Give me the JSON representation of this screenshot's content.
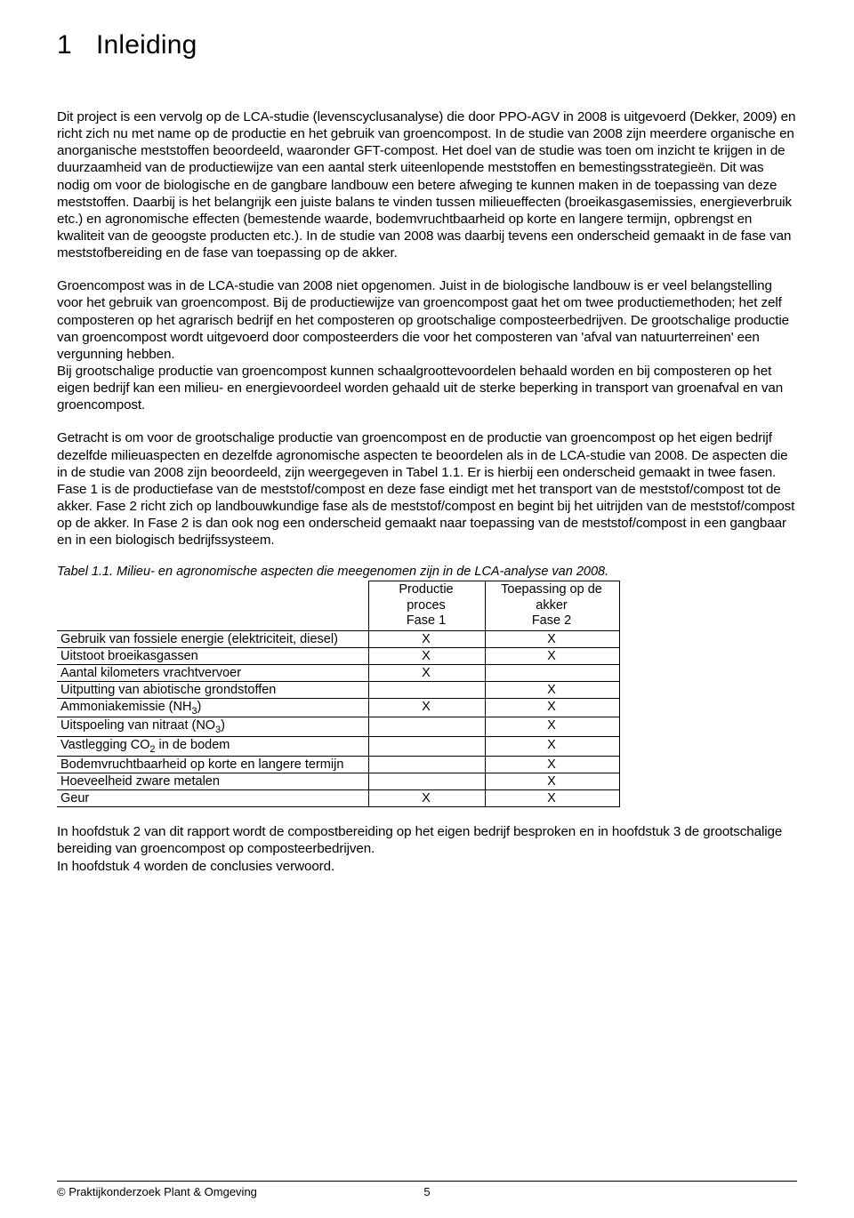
{
  "chapter": {
    "number": "1",
    "title": "Inleiding"
  },
  "paragraphs": {
    "p1": "Dit project is een vervolg op de LCA-studie (levenscyclusanalyse) die door PPO-AGV in 2008 is uitgevoerd (Dekker, 2009) en richt zich nu met name op de productie en het gebruik van groencompost. In de studie van 2008 zijn meerdere organische en anorganische meststoffen beoordeeld, waaronder GFT-compost. Het doel van de studie was toen om inzicht te krijgen in de duurzaamheid van de productiewijze van een aantal sterk uiteenlopende meststoffen en bemestingsstrategieën. Dit was nodig om voor de biologische en de gangbare landbouw een betere afweging te kunnen maken in de toepassing van deze meststoffen. Daarbij is het belangrijk een juiste balans te vinden tussen milieueffecten (broeikasgasemissies, energieverbruik etc.) en agronomische effecten (bemestende waarde, bodemvruchtbaarheid op korte en langere termijn, opbrengst en kwaliteit van de geoogste producten etc.). In de studie van 2008 was daarbij tevens een onderscheid gemaakt in de fase van meststofbereiding en de fase van toepassing op de akker.",
    "p2": "Groencompost was in de LCA-studie van 2008 niet opgenomen. Juist in de biologische landbouw is er veel belangstelling voor het gebruik van groencompost. Bij de productiewijze van groencompost gaat het om twee productiemethoden; het zelf composteren op het agrarisch bedrijf en het composteren op grootschalige composteerbedrijven. De grootschalige productie van groencompost wordt uitgevoerd door composteerders die voor het composteren van 'afval van natuurterreinen' een vergunning hebben.\nBij grootschalige productie van groencompost kunnen schaalgroottevoordelen behaald worden en bij composteren op het eigen bedrijf kan een milieu- en energievoordeel worden gehaald uit de sterke beperking in transport van groenafval en van groencompost.",
    "p3": "Getracht is om voor de grootschalige productie van groencompost en de productie van groencompost op het eigen bedrijf dezelfde milieuaspecten en dezelfde agronomische aspecten te beoordelen als in de LCA-studie van 2008. De aspecten die in de studie van 2008 zijn beoordeeld, zijn weergegeven in Tabel 1.1. Er is hierbij een onderscheid gemaakt in twee fasen. Fase 1 is de productiefase van de meststof/compost en deze fase eindigt met het transport van de meststof/compost tot de akker. Fase 2 richt zich op landbouwkundige fase als de meststof/compost en begint bij het uitrijden van de meststof/compost op de akker. In Fase 2 is dan ook nog een onderscheid gemaakt naar toepassing van de meststof/compost in een gangbaar en in een biologisch bedrijfssysteem.",
    "p4": "In hoofdstuk 2 van dit rapport wordt de compostbereiding op het eigen bedrijf besproken en in hoofdstuk 3 de grootschalige bereiding van groencompost op composteerbedrijven.\nIn hoofdstuk 4 worden de conclusies verwoord."
  },
  "table": {
    "caption": "Tabel 1.1. Milieu- en agronomische aspecten die meegenomen zijn in de LCA-analyse van 2008.",
    "header": {
      "col1": "",
      "col2_line1": "Productie",
      "col2_line2": "proces",
      "col2_line3": "Fase 1",
      "col3_line1": "Toepassing op de",
      "col3_line2": "akker",
      "col3_line3": "Fase 2"
    },
    "rows": [
      {
        "label_html": "Gebruik van fossiele energie (elektriciteit, diesel)",
        "p1": "X",
        "p2": "X"
      },
      {
        "label_html": "Uitstoot broeikasgassen",
        "p1": "X",
        "p2": "X"
      },
      {
        "label_html": "Aantal kilometers vrachtvervoer",
        "p1": "X",
        "p2": ""
      },
      {
        "label_html": "Uitputting van abiotische grondstoffen",
        "p1": "",
        "p2": "X"
      },
      {
        "label_html": "Ammoniakemissie (NH<sub>3</sub>)",
        "p1": "X",
        "p2": "X"
      },
      {
        "label_html": "Uitspoeling van nitraat (NO<sub>3</sub>)",
        "p1": "",
        "p2": "X"
      },
      {
        "label_html": "Vastlegging CO<sub>2</sub> in de bodem",
        "p1": "",
        "p2": "X"
      },
      {
        "label_html": "Bodemvruchtbaarheid op korte en langere termijn",
        "p1": "",
        "p2": "X"
      },
      {
        "label_html": "Hoeveelheid zware metalen",
        "p1": "",
        "p2": "X"
      },
      {
        "label_html": "Geur",
        "p1": "X",
        "p2": "X"
      }
    ]
  },
  "footer": {
    "copyright": "© Praktijkonderzoek Plant & Omgeving",
    "page_number": "5"
  }
}
